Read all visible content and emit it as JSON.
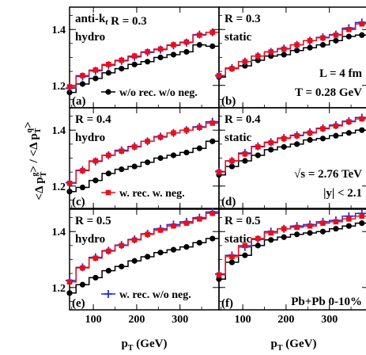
{
  "figure": {
    "ylabel": "<Δ p_T^g> / <Δ p_T^q>",
    "xlabel": "p_T (GeV)",
    "xlabel_unit": "(GeV)"
  },
  "chart_data": {
    "type": "line",
    "x": [
      45,
      75,
      105,
      135,
      165,
      195,
      225,
      255,
      285,
      315,
      345,
      375
    ],
    "xlim": [
      45,
      390
    ],
    "ylim": [
      1.12,
      1.48
    ],
    "yticks": [
      1.2,
      1.4
    ],
    "ytick_labels": [
      "1.2",
      "1.4"
    ],
    "xticks": [
      100,
      200,
      300
    ],
    "xtick_labels": [
      "100",
      "200",
      "300"
    ],
    "legend": {
      "black": "w/o rec. w/o neg.",
      "red": "w. rec. w. neg.",
      "blue": "w. rec. w/o neg."
    },
    "colors": {
      "black": "#000000",
      "red": "#e8101a",
      "blue": "#1f2de0"
    },
    "panels": [
      {
        "id": "a",
        "label": "(a)",
        "title": "anti-k_t R = 0.3",
        "subtitle": "hydro",
        "legend_key": "black",
        "notes": [],
        "series": [
          {
            "key": "black",
            "values": [
              1.175,
              1.205,
              1.225,
              1.245,
              1.26,
              1.275,
              1.285,
              1.3,
              1.31,
              1.32,
              1.345,
              1.34
            ]
          },
          {
            "key": "red",
            "values": [
              1.195,
              1.235,
              1.255,
              1.275,
              1.29,
              1.305,
              1.32,
              1.33,
              1.345,
              1.355,
              1.38,
              1.39
            ]
          },
          {
            "key": "blue",
            "values": [
              1.19,
              1.232,
              1.252,
              1.272,
              1.288,
              1.302,
              1.318,
              1.328,
              1.343,
              1.353,
              1.382,
              1.39
            ]
          }
        ]
      },
      {
        "id": "b",
        "label": "(b)",
        "title": "R = 0.3",
        "subtitle": "static",
        "legend_key": null,
        "notes": [
          "L = 4 fm",
          "T = 0.28 GeV"
        ],
        "series": [
          {
            "key": "black",
            "values": [
              1.23,
              1.26,
              1.27,
              1.29,
              1.305,
              1.31,
              1.325,
              1.335,
              1.345,
              1.36,
              1.375,
              1.38
            ]
          },
          {
            "key": "red",
            "values": [
              1.235,
              1.26,
              1.285,
              1.305,
              1.32,
              1.33,
              1.345,
              1.36,
              1.37,
              1.38,
              1.4,
              1.42
            ]
          },
          {
            "key": "blue",
            "values": [
              1.235,
              1.262,
              1.285,
              1.305,
              1.32,
              1.332,
              1.345,
              1.36,
              1.372,
              1.382,
              1.405,
              1.425
            ]
          }
        ]
      },
      {
        "id": "c",
        "label": "(c)",
        "title": "R = 0.4",
        "subtitle": "hydro",
        "legend_key": "red",
        "notes": [],
        "series": [
          {
            "key": "black",
            "values": [
              1.18,
              1.195,
              1.22,
              1.245,
              1.26,
              1.27,
              1.285,
              1.3,
              1.31,
              1.32,
              1.335,
              1.36
            ]
          },
          {
            "key": "red",
            "values": [
              1.21,
              1.255,
              1.29,
              1.31,
              1.325,
              1.34,
              1.36,
              1.375,
              1.39,
              1.4,
              1.41,
              1.425
            ]
          },
          {
            "key": "blue",
            "values": [
              1.212,
              1.257,
              1.288,
              1.31,
              1.328,
              1.342,
              1.36,
              1.377,
              1.39,
              1.4,
              1.412,
              1.43
            ]
          }
        ]
      },
      {
        "id": "d",
        "label": "(d)",
        "title": "R = 0.4",
        "subtitle": "static",
        "legend_key": null,
        "notes": [
          "√s = 2.76 TeV",
          "|y| < 2.1"
        ],
        "series": [
          {
            "key": "black",
            "values": [
              1.24,
              1.27,
              1.29,
              1.31,
              1.33,
              1.34,
              1.35,
              1.365,
              1.37,
              1.38,
              1.39,
              1.4
            ]
          },
          {
            "key": "red",
            "values": [
              1.25,
              1.29,
              1.315,
              1.34,
              1.355,
              1.37,
              1.38,
              1.39,
              1.405,
              1.415,
              1.43,
              1.44
            ]
          },
          {
            "key": "blue",
            "values": [
              1.252,
              1.29,
              1.318,
              1.342,
              1.357,
              1.372,
              1.382,
              1.392,
              1.407,
              1.418,
              1.432,
              1.445
            ]
          }
        ]
      },
      {
        "id": "e",
        "label": "(e)",
        "title": "R = 0.5",
        "subtitle": "hydro",
        "legend_key": "blue",
        "notes": [],
        "series": [
          {
            "key": "black",
            "values": [
              1.18,
              1.21,
              1.235,
              1.26,
              1.275,
              1.295,
              1.31,
              1.325,
              1.335,
              1.345,
              1.36,
              1.375
            ]
          },
          {
            "key": "red",
            "values": [
              1.22,
              1.27,
              1.305,
              1.33,
              1.35,
              1.37,
              1.39,
              1.405,
              1.42,
              1.43,
              1.445,
              1.465
            ]
          },
          {
            "key": "blue",
            "values": [
              1.225,
              1.272,
              1.308,
              1.332,
              1.352,
              1.372,
              1.392,
              1.41,
              1.425,
              1.435,
              1.45,
              1.47
            ]
          }
        ]
      },
      {
        "id": "f",
        "label": "(f)",
        "title": "R = 0.5",
        "subtitle": "static",
        "legend_key": null,
        "notes": [
          "Pb+Pb 0-10%"
        ],
        "series": [
          {
            "key": "black",
            "values": [
              1.23,
              1.29,
              1.315,
              1.35,
              1.37,
              1.38,
              1.39,
              1.395,
              1.4,
              1.41,
              1.42,
              1.43
            ]
          },
          {
            "key": "red",
            "values": [
              1.245,
              1.31,
              1.35,
              1.375,
              1.395,
              1.41,
              1.415,
              1.42,
              1.43,
              1.435,
              1.445,
              1.455
            ]
          },
          {
            "key": "blue",
            "values": [
              1.248,
              1.315,
              1.345,
              1.372,
              1.4,
              1.41,
              1.42,
              1.425,
              1.435,
              1.44,
              1.455,
              1.465
            ]
          }
        ]
      }
    ]
  }
}
